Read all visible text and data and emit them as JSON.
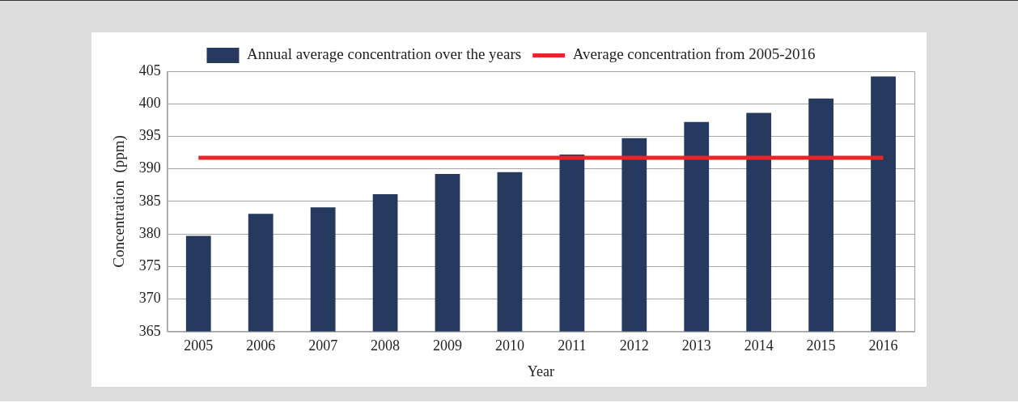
{
  "chart_data": {
    "type": "bar",
    "xlabel": "Year",
    "ylabel": "Concentration  (ppm)",
    "categories": [
      "2005",
      "2006",
      "2007",
      "2008",
      "2009",
      "2010",
      "2011",
      "2012",
      "2013",
      "2014",
      "2015",
      "2016"
    ],
    "series": [
      {
        "name": "Annual average concentration over the years",
        "color": "#253a5e",
        "values": [
          379.7,
          383.1,
          384.1,
          386.1,
          389.2,
          389.5,
          392.2,
          394.7,
          397.2,
          398.6,
          400.8,
          404.2
        ]
      },
      {
        "name": "Average concentration from 2005-2016",
        "type": "line",
        "color": "#e8262a",
        "marker": "none",
        "values": [
          391.7,
          391.7,
          391.7,
          391.7,
          391.7,
          391.7,
          391.7,
          391.7,
          391.7,
          391.7,
          391.7,
          391.7
        ]
      }
    ],
    "ylim": [
      365,
      405
    ],
    "yticks": [
      365,
      370,
      375,
      380,
      385,
      390,
      395,
      400,
      405
    ],
    "grid": "y",
    "legend": "top"
  }
}
